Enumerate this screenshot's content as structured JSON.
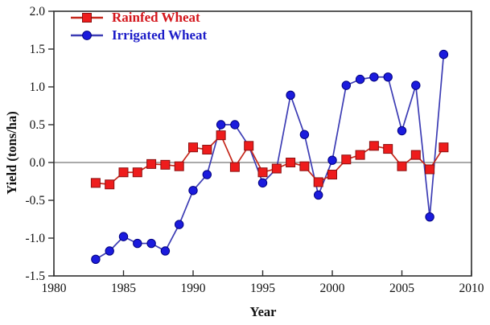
{
  "chart_data": {
    "type": "line",
    "title": "",
    "xlabel": "Year",
    "ylabel": "Yield (tons/ha)",
    "xlim": [
      1980,
      2010
    ],
    "ylim": [
      -1.5,
      2.0
    ],
    "x_tick_labels": [
      "1980",
      "1985",
      "1990",
      "1995",
      "2000",
      "2005",
      "2010"
    ],
    "y_tick_labels": [
      "2.0",
      "1.5",
      "1.0",
      "0.5",
      "0.0",
      "-0.5",
      "-1.0",
      "-1.5"
    ],
    "grid": false,
    "zero_line": true,
    "legend_position": "top-left-inside",
    "x": [
      1983,
      1984,
      1985,
      1986,
      1987,
      1988,
      1989,
      1990,
      1991,
      1992,
      1993,
      1994,
      1995,
      1996,
      1997,
      1998,
      1999,
      2000,
      2001,
      2002,
      2003,
      2004,
      2005,
      2006,
      2007,
      2008
    ],
    "series": [
      {
        "name": "Irrigated Wheat",
        "marker": "circle",
        "marker_color": "#1b1bdd",
        "marker_edge": "#000080",
        "line_color": "#3c3cb4",
        "values": [
          -1.28,
          -1.17,
          -0.98,
          -1.07,
          -1.07,
          -1.17,
          -0.82,
          -0.37,
          -0.16,
          0.5,
          0.5,
          0.22,
          -0.27,
          -0.08,
          0.89,
          0.37,
          -0.43,
          0.03,
          1.02,
          1.1,
          1.13,
          1.13,
          0.42,
          1.02,
          -0.72,
          1.43
        ]
      },
      {
        "name": "Rainfed Wheat",
        "marker": "square",
        "marker_color": "#ee1c1c",
        "marker_edge": "#8b0f0f",
        "line_color": "#c5281c",
        "values": [
          -0.27,
          -0.29,
          -0.13,
          -0.13,
          -0.02,
          -0.03,
          -0.05,
          0.2,
          0.17,
          0.36,
          -0.06,
          0.22,
          -0.13,
          -0.08,
          0.0,
          -0.05,
          -0.26,
          -0.16,
          0.04,
          0.1,
          0.22,
          0.18,
          -0.05,
          0.1,
          -0.09,
          0.2
        ]
      }
    ],
    "legend_order": [
      "Rainfed Wheat",
      "Irrigated Wheat"
    ],
    "axis_color": "#2e2e2e",
    "zero_line_color": "#555555",
    "tick_label_color": "#111111"
  }
}
